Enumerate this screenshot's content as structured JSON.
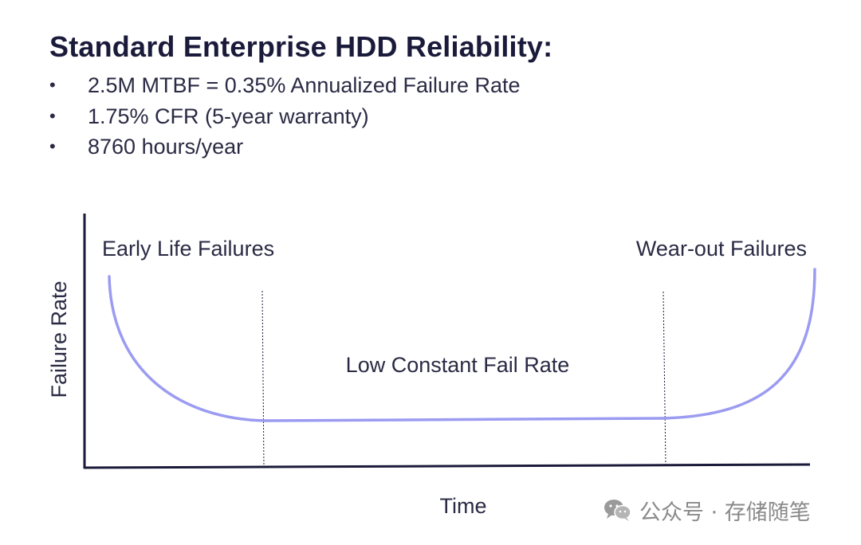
{
  "slide": {
    "title": "Standard Enterprise HDD Reliability:",
    "bullet_marker": "•",
    "bullets": [
      "2.5M MTBF = 0.35% Annualized Failure Rate",
      "1.75% CFR (5-year warranty)",
      "8760 hours/year"
    ]
  },
  "diagram": {
    "y_axis_label": "Failure Rate",
    "x_axis_label": "Time",
    "region_labels": {
      "early": "Early Life Failures",
      "constant": "Low Constant Fail Rate",
      "wearout": "Wear-out Failures"
    },
    "curve_color": "#9b9bf2",
    "axis_color": "#1a1a3a"
  },
  "watermark": {
    "icon": "wechat-icon",
    "text": "公众号 · 存储随笔"
  }
}
